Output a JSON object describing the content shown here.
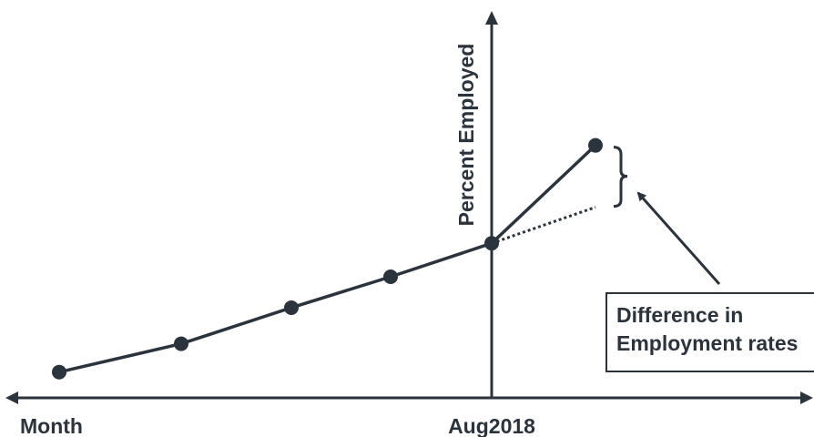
{
  "chart_data": {
    "type": "line",
    "title": "",
    "xlabel": "Month",
    "ylabel": "Percent Employed",
    "x_marker_label": "Aug2018",
    "grid": false,
    "legend": "none",
    "series": [
      {
        "values": [
          {
            "x": 1,
            "y": 1.0
          },
          {
            "x": 2,
            "y": 2.1
          },
          {
            "x": 3,
            "y": 3.5
          },
          {
            "x": 4,
            "y": 4.7
          },
          {
            "x": 5,
            "y": 6.0
          },
          {
            "x": 6,
            "y": 9.8
          }
        ]
      },
      {
        "style": "dotted",
        "values": [
          {
            "x": 5,
            "y": 6.0
          },
          {
            "x": 6,
            "y": 7.4
          }
        ]
      }
    ],
    "annotation": {
      "line1": "Difference in",
      "line2": "Employment rates"
    }
  },
  "colors": {
    "ink": "#2b333d"
  }
}
